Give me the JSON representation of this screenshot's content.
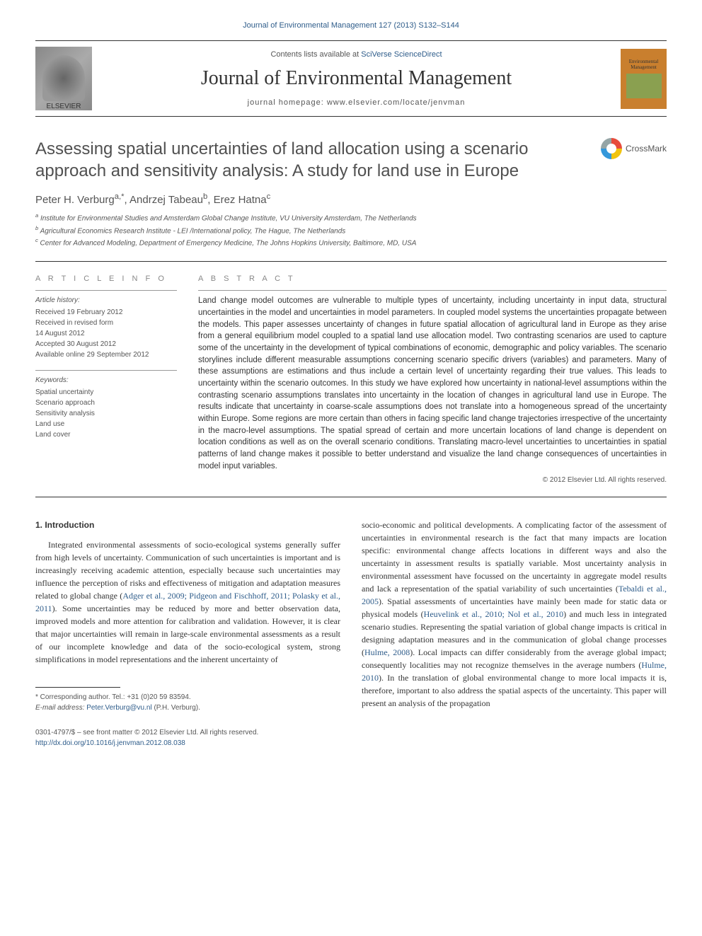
{
  "top_link": "Journal of Environmental Management 127 (2013) S132–S144",
  "header": {
    "contents_prefix": "Contents lists available at ",
    "contents_link": "SciVerse ScienceDirect",
    "journal_name": "Journal of Environmental Management",
    "homepage_prefix": "journal homepage: ",
    "homepage_url": "www.elsevier.com/locate/jenvman",
    "elsevier_label": "ELSEVIER",
    "cover_text": "Environmental Management"
  },
  "crossmark_label": "CrossMark",
  "title": "Assessing spatial uncertainties of land allocation using a scenario approach and sensitivity analysis: A study for land use in Europe",
  "authors_html": "Peter H. Verburg",
  "authors_rest": ", Andrzej Tabeau",
  "author_sup_a": "a,*",
  "author_sup_b": "b",
  "author_c": ", Erez Hatna",
  "author_sup_c": "c",
  "affiliations": {
    "a": "Institute for Environmental Studies and Amsterdam Global Change Institute, VU University Amsterdam, The Netherlands",
    "b": "Agricultural Economics Research Institute - LEI /International policy, The Hague, The Netherlands",
    "c": "Center for Advanced Modeling, Department of Emergency Medicine, The Johns Hopkins University, Baltimore, MD, USA"
  },
  "info_heading": "A R T I C L E   I N F O",
  "history": {
    "label": "Article history:",
    "received": "Received 19 February 2012",
    "revised": "Received in revised form",
    "revised_date": "14 August 2012",
    "accepted": "Accepted 30 August 2012",
    "online": "Available online 29 September 2012"
  },
  "keywords": {
    "label": "Keywords:",
    "k1": "Spatial uncertainty",
    "k2": "Scenario approach",
    "k3": "Sensitivity analysis",
    "k4": "Land use",
    "k5": "Land cover"
  },
  "abstract_heading": "A B S T R A C T",
  "abstract_text": "Land change model outcomes are vulnerable to multiple types of uncertainty, including uncertainty in input data, structural uncertainties in the model and uncertainties in model parameters. In coupled model systems the uncertainties propagate between the models. This paper assesses uncertainty of changes in future spatial allocation of agricultural land in Europe as they arise from a general equilibrium model coupled to a spatial land use allocation model. Two contrasting scenarios are used to capture some of the uncertainty in the development of typical combinations of economic, demographic and policy variables. The scenario storylines include different measurable assumptions concerning scenario specific drivers (variables) and parameters. Many of these assumptions are estimations and thus include a certain level of uncertainty regarding their true values. This leads to uncertainty within the scenario outcomes. In this study we have explored how uncertainty in national-level assumptions within the contrasting scenario assumptions translates into uncertainty in the location of changes in agricultural land use in Europe. The results indicate that uncertainty in coarse-scale assumptions does not translate into a homogeneous spread of the uncertainty within Europe. Some regions are more certain than others in facing specific land change trajectories irrespective of the uncertainty in the macro-level assumptions. The spatial spread of certain and more uncertain locations of land change is dependent on location conditions as well as on the overall scenario conditions. Translating macro-level uncertainties to uncertainties in spatial patterns of land change makes it possible to better understand and visualize the land change consequences of uncertainties in model input variables.",
  "abstract_copyright": "© 2012 Elsevier Ltd. All rights reserved.",
  "section1_heading": "1.  Introduction",
  "col1_para": "Integrated environmental assessments of socio-ecological systems generally suffer from high levels of uncertainty. Communication of such uncertainties is important and is increasingly receiving academic attention, especially because such uncertainties may influence the perception of risks and effectiveness of mitigation and adaptation measures related to global change (",
  "col1_cite1": "Adger et al., 2009; Pidgeon and Fischhoff, 2011; Polasky et al., 2011",
  "col1_para_cont": "). Some uncertainties may be reduced by more and better observation data, improved models and more attention for calibration and validation. However, it is clear that major uncertainties will remain in large-scale environmental assessments as a result of our incomplete knowledge and data of the socio-ecological system, strong simplifications in model representations and the inherent uncertainty of",
  "col2_para1": "socio-economic and political developments. A complicating factor of the assessment of uncertainties in environmental research is the fact that many impacts are location specific: environmental change affects locations in different ways and also the uncertainty in assessment results is spatially variable. Most uncertainty analysis in environmental assessment have focussed on the uncertainty in aggregate model results and lack a representation of the spatial variability of such uncertainties (",
  "col2_cite1": "Tebaldi et al., 2005",
  "col2_para1_cont": "). Spatial assessments of uncertainties have mainly been made for static data or physical models (",
  "col2_cite2": "Heuvelink et al., 2010; Nol et al., 2010",
  "col2_para1_cont2": ") and much less in integrated scenario studies. Representing the spatial variation of global change impacts is critical in designing adaptation measures and in the communication of global change processes (",
  "col2_cite3": "Hulme, 2008",
  "col2_para1_cont3": "). Local impacts can differ considerably from the average global impact; consequently localities may not recognize themselves in the average numbers (",
  "col2_cite4": "Hulme, 2010",
  "col2_para1_cont4": "). In the translation of global environmental change to more local impacts it is, therefore, important to also address the spatial aspects of the uncertainty. This paper will present an analysis of the propagation",
  "footnote_corresponding": "* Corresponding author. Tel.: +31 (0)20 59 83594.",
  "footnote_email_label": "E-mail address: ",
  "footnote_email": "Peter.Verburg@vu.nl",
  "footnote_email_suffix": " (P.H. Verburg).",
  "bottom": {
    "issn": "0301-4797/$ – see front matter © 2012 Elsevier Ltd. All rights reserved.",
    "doi": "http://dx.doi.org/10.1016/j.jenvman.2012.08.038"
  },
  "colors": {
    "link": "#2e5c8a",
    "text": "#333333",
    "muted": "#555555",
    "heading_gray": "#888888"
  }
}
